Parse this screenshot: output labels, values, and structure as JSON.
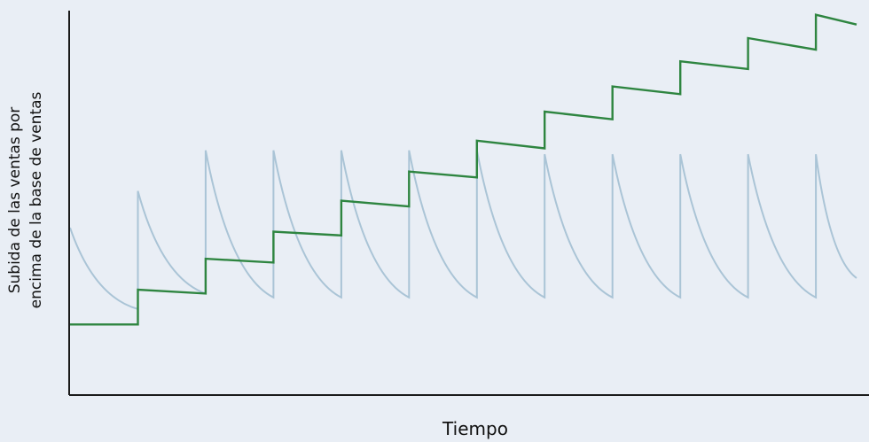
{
  "chart_data": {
    "type": "line",
    "title": "",
    "xlabel": "Tiempo",
    "ylabel_lines": [
      "Subida de las ventas por",
      "encima de la base de ventas"
    ],
    "x_tick_labels": [],
    "y_tick_labels": [],
    "grid": false,
    "legend": "none",
    "xlim": [
      0,
      11.6
    ],
    "ylim": [
      0,
      10
    ],
    "series": [
      {
        "color": "#aac4d6",
        "points": [
          [
            0,
            4.3
          ],
          [
            1,
            2.2
          ],
          [
            1,
            5.25
          ],
          [
            2,
            2.6
          ],
          [
            2,
            6.3
          ],
          [
            3,
            2.5
          ],
          [
            3,
            6.3
          ],
          [
            4,
            2.5
          ],
          [
            4,
            6.3
          ],
          [
            5,
            2.5
          ],
          [
            5,
            6.3
          ],
          [
            6,
            2.5
          ],
          [
            6,
            6.3
          ],
          [
            7,
            2.5
          ],
          [
            7,
            6.2
          ],
          [
            8,
            2.5
          ],
          [
            8,
            6.2
          ],
          [
            9,
            2.5
          ],
          [
            9,
            6.2
          ],
          [
            10,
            2.5
          ],
          [
            10,
            6.2
          ],
          [
            11,
            2.5
          ],
          [
            11,
            6.2
          ],
          [
            11.6,
            3.0
          ]
        ]
      },
      {
        "color": "#2e8540",
        "points": [
          [
            0,
            1.8
          ],
          [
            1,
            1.8
          ],
          [
            1,
            2.7
          ],
          [
            2,
            2.6
          ],
          [
            2,
            3.5
          ],
          [
            3,
            3.4
          ],
          [
            3,
            4.2
          ],
          [
            4,
            4.1
          ],
          [
            4,
            5.0
          ],
          [
            5,
            4.85
          ],
          [
            5,
            5.75
          ],
          [
            6,
            5.6
          ],
          [
            6,
            6.55
          ],
          [
            7,
            6.35
          ],
          [
            7,
            7.3
          ],
          [
            8,
            7.1
          ],
          [
            8,
            7.95
          ],
          [
            9,
            7.75
          ],
          [
            9,
            8.6
          ],
          [
            10,
            8.4
          ],
          [
            10,
            9.2
          ],
          [
            11,
            8.9
          ],
          [
            11,
            9.8
          ],
          [
            11.6,
            9.55
          ]
        ]
      }
    ]
  }
}
